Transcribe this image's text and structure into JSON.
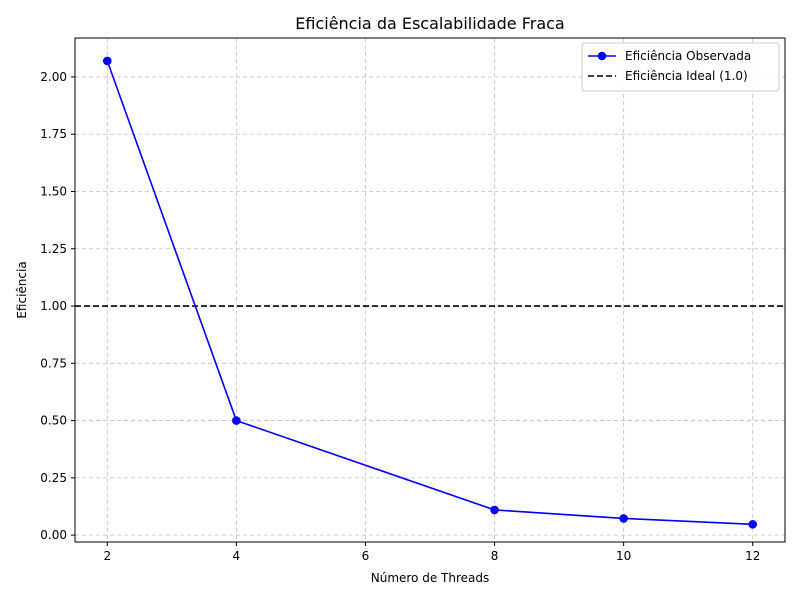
{
  "chart_data": {
    "type": "line",
    "title": "Eficiência da Escalabilidade Fraca",
    "xlabel": "Número de Threads",
    "ylabel": "Eficiência",
    "xlim": [
      1.5,
      12.5
    ],
    "ylim": [
      -0.03,
      2.17
    ],
    "xticks": [
      2,
      4,
      6,
      8,
      10,
      12
    ],
    "yticks": [
      0.0,
      0.25,
      0.5,
      0.75,
      1.0,
      1.25,
      1.5,
      1.75,
      2.0
    ],
    "grid": true,
    "legend_position": "top-right",
    "series": [
      {
        "name": "Eficiência Observada",
        "color": "#0000ff",
        "marker": "circle",
        "line_style": "solid",
        "x": [
          2,
          4,
          8,
          10,
          12
        ],
        "y": [
          2.07,
          0.5,
          0.11,
          0.073,
          0.047
        ]
      }
    ],
    "reference_lines": [
      {
        "name": "Eficiência Ideal (1.0)",
        "y": 1.0,
        "color": "#000000",
        "line_style": "dashed"
      }
    ]
  }
}
